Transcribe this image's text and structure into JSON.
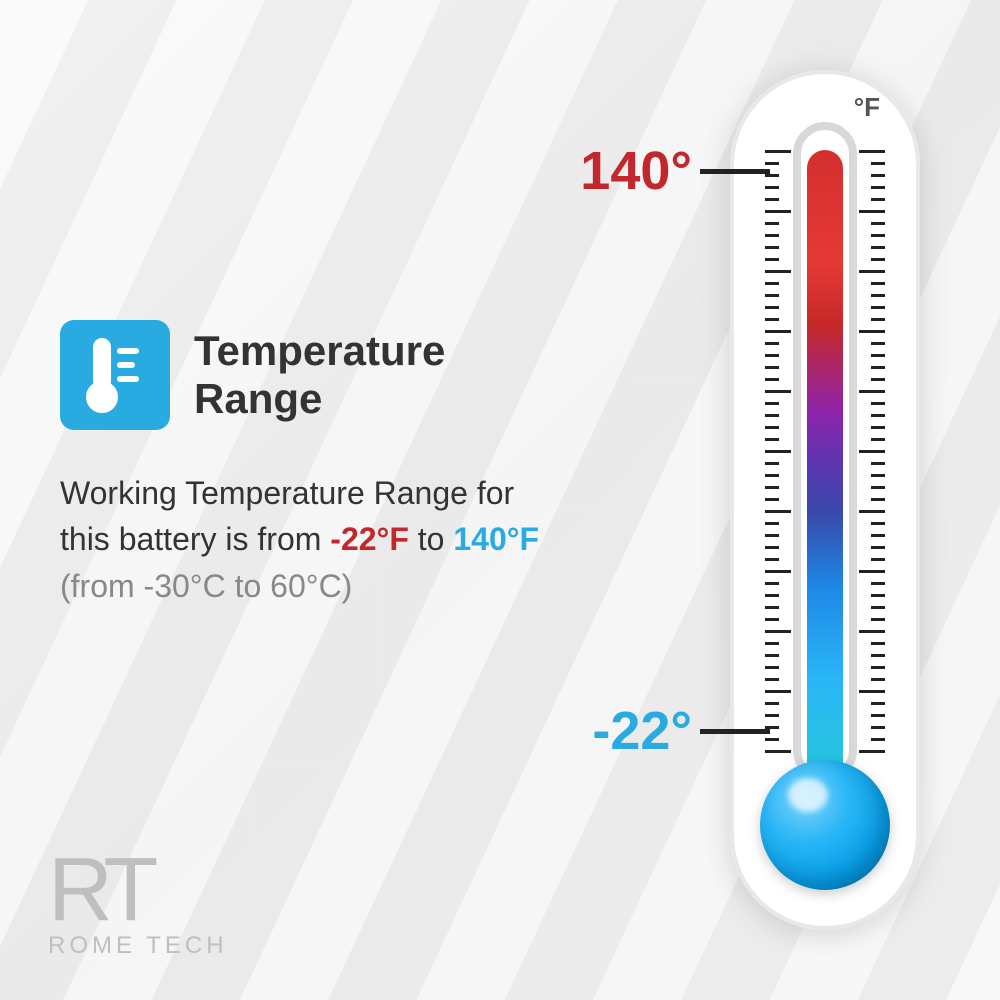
{
  "title": "Temperature\nRange",
  "description": {
    "prefix": "Working Temperature Range for this battery is from ",
    "low_f": "-22°F",
    "mid": " to ",
    "high_f": "140°F",
    "celsius": "(from -30°C to 60°C)"
  },
  "thermometer": {
    "unit": "°F",
    "high_label": "140°",
    "low_label": "-22°",
    "colors": {
      "hot": "#c1272d",
      "cold": "#29abe2",
      "body": "#ffffff",
      "border": "#d8d8d8",
      "tick": "#222222"
    },
    "tick_count": 50,
    "major_every": 5
  },
  "icon": {
    "bg": "#29abe2",
    "fg": "#ffffff"
  },
  "logo": {
    "mark": "RT",
    "name": "ROME TECH",
    "color": "#bfbfbf"
  }
}
